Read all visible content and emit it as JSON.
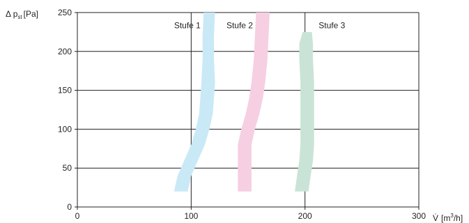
{
  "chart_data": {
    "type": "line",
    "ylabel": {
      "prefix": "Δ p",
      "sub": "st",
      "unit": "[Pa]"
    },
    "xlabel": {
      "symbol": "V̇",
      "unit_pre": "[m",
      "unit_sup": "3",
      "unit_post": "/h]"
    },
    "xlim": [
      0,
      300
    ],
    "ylim": [
      0,
      250
    ],
    "xticks": [
      "0",
      "100",
      "200",
      "300"
    ],
    "yticks": [
      "0",
      "50",
      "100",
      "150",
      "200",
      "250"
    ],
    "grid": true,
    "series": [
      {
        "name": "Stufe 1",
        "color": "#c9e9f6",
        "center": [
          [
            91,
            20
          ],
          [
            94,
            40
          ],
          [
            100,
            60
          ],
          [
            106,
            80
          ],
          [
            110,
            100
          ],
          [
            113,
            120
          ],
          [
            114,
            140
          ],
          [
            115,
            160
          ],
          [
            115,
            190
          ],
          [
            115,
            220
          ],
          [
            116,
            250
          ]
        ],
        "halfwidth": [
          6,
          6,
          6,
          6,
          6,
          6,
          6,
          6,
          5,
          5,
          5
        ]
      },
      {
        "name": "Stufe 2",
        "color": "#f6cfe2",
        "center": [
          [
            147,
            20
          ],
          [
            147,
            40
          ],
          [
            147,
            60
          ],
          [
            147,
            80
          ],
          [
            150,
            100
          ],
          [
            154,
            120
          ],
          [
            157,
            140
          ],
          [
            159,
            160
          ],
          [
            161,
            190
          ],
          [
            162,
            220
          ],
          [
            163,
            250
          ]
        ],
        "halfwidth": [
          6,
          6,
          6,
          6,
          6,
          6,
          6,
          6,
          6,
          6,
          6
        ]
      },
      {
        "name": "Stufe 3",
        "color": "#c9e4d6",
        "center": [
          [
            197,
            20
          ],
          [
            199,
            40
          ],
          [
            201,
            60
          ],
          [
            202,
            80
          ],
          [
            202,
            100
          ],
          [
            202,
            120
          ],
          [
            202,
            140
          ],
          [
            202,
            160
          ],
          [
            201,
            190
          ],
          [
            201,
            210
          ],
          [
            202,
            225
          ]
        ],
        "halfwidth": [
          6,
          6,
          6,
          6,
          6,
          6,
          6,
          6,
          6,
          6,
          4
        ]
      }
    ],
    "annotations": [
      {
        "text": "Stufe 1",
        "x": 85,
        "y": 230
      },
      {
        "text": "Stufe 2",
        "x": 131,
        "y": 230
      },
      {
        "text": "Stufe 3",
        "x": 212,
        "y": 230
      }
    ]
  }
}
